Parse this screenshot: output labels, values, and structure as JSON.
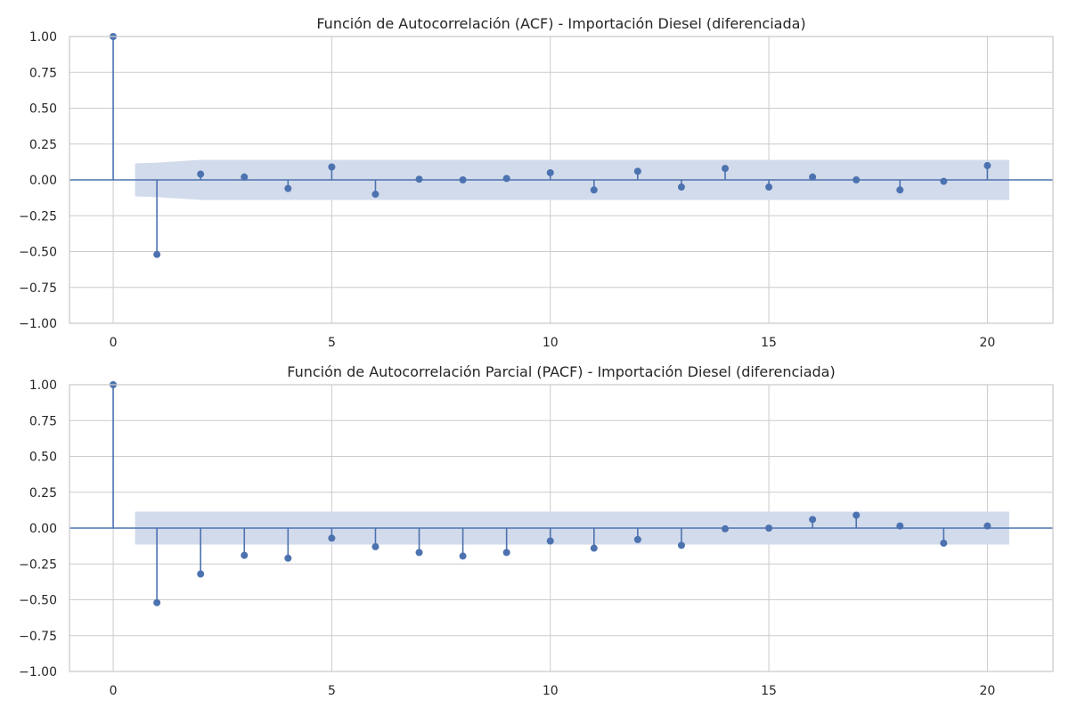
{
  "chart_data": [
    {
      "type": "stem",
      "title": "Función de Autocorrelación (ACF) - Importación Diesel (diferenciada)",
      "xlabel": "",
      "ylabel": "",
      "xlim": [
        -1,
        21.5
      ],
      "ylim": [
        -1.0,
        1.0
      ],
      "xticks": [
        0,
        5,
        10,
        15,
        20
      ],
      "yticks": [
        1.0,
        0.75,
        0.5,
        0.25,
        0.0,
        -0.25,
        -0.5,
        -0.75,
        -1.0
      ],
      "ytick_labels": [
        "1.00",
        "0.75",
        "0.50",
        "0.25",
        "0.00",
        "−0.25",
        "−0.50",
        "−0.75",
        "−1.00"
      ],
      "grid": true,
      "lags": [
        0,
        1,
        2,
        3,
        4,
        5,
        6,
        7,
        8,
        9,
        10,
        11,
        12,
        13,
        14,
        15,
        16,
        17,
        18,
        19,
        20
      ],
      "values": [
        1.0,
        -0.52,
        0.04,
        0.02,
        -0.06,
        0.09,
        -0.1,
        0.005,
        0.0,
        0.01,
        0.05,
        -0.07,
        0.06,
        -0.05,
        0.08,
        -0.05,
        0.02,
        0.0,
        -0.07,
        -0.01,
        0.1
      ],
      "confidence_band": {
        "lags": [
          0.5,
          1,
          2,
          3,
          4,
          5,
          6,
          7,
          8,
          9,
          10,
          11,
          12,
          13,
          14,
          15,
          16,
          17,
          18,
          19,
          20,
          20.5
        ],
        "upper": [
          0.115,
          0.12,
          0.14,
          0.14,
          0.14,
          0.14,
          0.14,
          0.14,
          0.14,
          0.14,
          0.14,
          0.14,
          0.14,
          0.14,
          0.14,
          0.14,
          0.14,
          0.14,
          0.14,
          0.14,
          0.14,
          0.14
        ],
        "lower": [
          -0.115,
          -0.12,
          -0.14,
          -0.14,
          -0.14,
          -0.14,
          -0.14,
          -0.14,
          -0.14,
          -0.14,
          -0.14,
          -0.14,
          -0.14,
          -0.14,
          -0.14,
          -0.14,
          -0.14,
          -0.14,
          -0.14,
          -0.14,
          -0.14,
          -0.14
        ]
      },
      "color": "#4c72b0",
      "band_color": "#d2dbeb"
    },
    {
      "type": "stem",
      "title": "Función de Autocorrelación Parcial (PACF) - Importación Diesel (diferenciada)",
      "xlabel": "",
      "ylabel": "",
      "xlim": [
        -1,
        21.5
      ],
      "ylim": [
        -1.0,
        1.0
      ],
      "xticks": [
        0,
        5,
        10,
        15,
        20
      ],
      "yticks": [
        1.0,
        0.75,
        0.5,
        0.25,
        0.0,
        -0.25,
        -0.5,
        -0.75,
        -1.0
      ],
      "ytick_labels": [
        "1.00",
        "0.75",
        "0.50",
        "0.25",
        "0.00",
        "−0.25",
        "−0.50",
        "−0.75",
        "−1.00"
      ],
      "grid": true,
      "lags": [
        0,
        1,
        2,
        3,
        4,
        5,
        6,
        7,
        8,
        9,
        10,
        11,
        12,
        13,
        14,
        15,
        16,
        17,
        18,
        19,
        20
      ],
      "values": [
        1.0,
        -0.52,
        -0.32,
        -0.19,
        -0.21,
        -0.07,
        -0.13,
        -0.17,
        -0.195,
        -0.17,
        -0.09,
        -0.14,
        -0.08,
        -0.12,
        -0.005,
        0.0,
        0.06,
        0.09,
        0.015,
        -0.105,
        0.015
      ],
      "confidence_band": {
        "lags": [
          0.5,
          20.5
        ],
        "upper": [
          0.115,
          0.115
        ],
        "lower": [
          -0.115,
          -0.115
        ]
      },
      "color": "#4c72b0",
      "band_color": "#d2dbeb"
    }
  ]
}
